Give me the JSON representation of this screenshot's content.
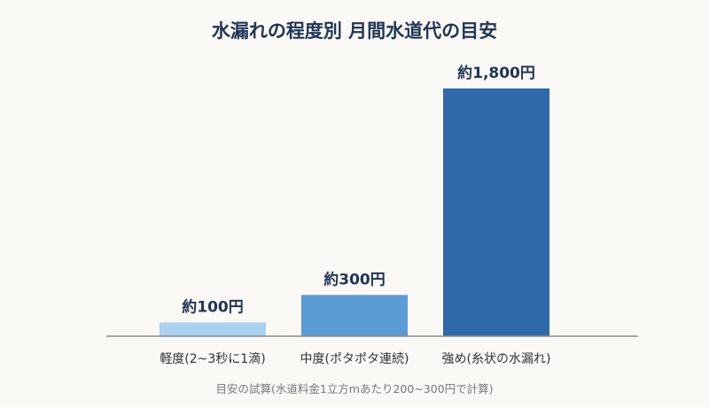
{
  "chart_data": {
    "type": "bar",
    "title": "水漏れの程度別 月間水道代の目安",
    "categories": [
      "軽度(2~3秒に1滴)",
      "中度(ポタポタ連続)",
      "強め(糸状の水漏れ)"
    ],
    "values": [
      100,
      300,
      1800
    ],
    "value_labels": [
      "約100円",
      "約300円",
      "約1,800円"
    ],
    "colors": [
      "#a8d1f2",
      "#5b9bd5",
      "#2e6aa9"
    ],
    "ylim": [
      0,
      1800
    ],
    "grid": false,
    "footnote": "目安の試算(水道料金1立方mあたり200~300円で計算)"
  }
}
